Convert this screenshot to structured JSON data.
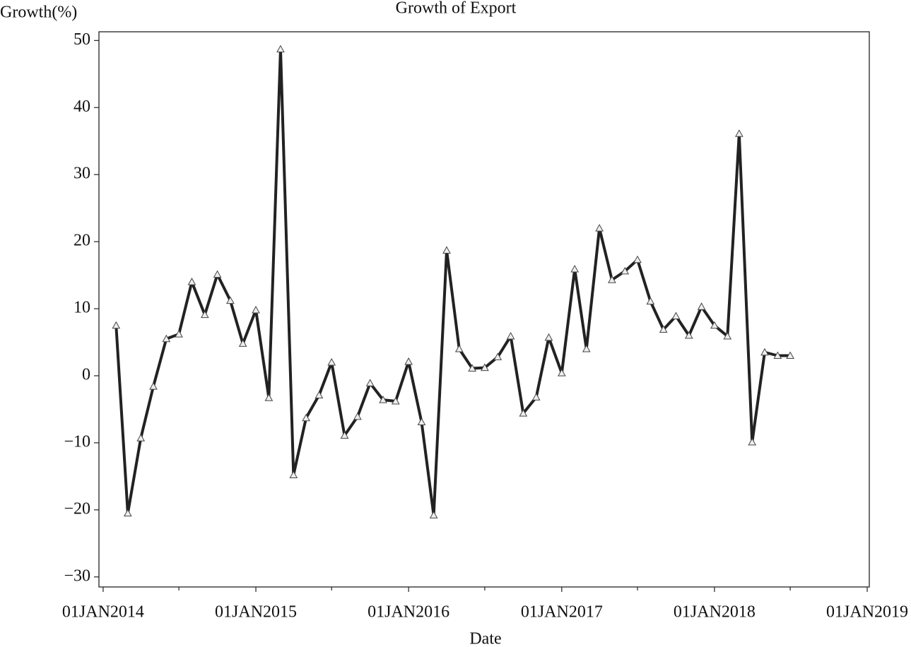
{
  "chart_data": {
    "type": "line",
    "title": "Growth of Export",
    "x_label": "Date",
    "y_label": "Growth(%)",
    "x": [
      "2014-02-01",
      "2014-03-01",
      "2014-04-01",
      "2014-05-01",
      "2014-06-01",
      "2014-07-01",
      "2014-08-01",
      "2014-09-01",
      "2014-10-01",
      "2014-11-01",
      "2014-12-01",
      "2015-01-01",
      "2015-02-01",
      "2015-03-01",
      "2015-04-01",
      "2015-05-01",
      "2015-06-01",
      "2015-07-01",
      "2015-08-01",
      "2015-09-01",
      "2015-10-01",
      "2015-11-01",
      "2015-12-01",
      "2016-01-01",
      "2016-02-01",
      "2016-03-01",
      "2016-04-01",
      "2016-05-01",
      "2016-06-01",
      "2016-07-01",
      "2016-08-01",
      "2016-09-01",
      "2016-10-01",
      "2016-11-01",
      "2016-12-01",
      "2017-01-01",
      "2017-02-01",
      "2017-03-01",
      "2017-04-01",
      "2017-05-01",
      "2017-06-01",
      "2017-07-01",
      "2017-08-01",
      "2017-09-01",
      "2017-10-01",
      "2017-11-01",
      "2017-12-01",
      "2018-01-01",
      "2018-02-01",
      "2018-03-01",
      "2018-04-01",
      "2018-05-01",
      "2018-06-01",
      "2018-07-01"
    ],
    "series": [
      {
        "color": "#222222",
        "values": [
          7.5,
          -20.5,
          -9.3,
          -1.6,
          5.5,
          6.2,
          14,
          9.1,
          15.1,
          11.2,
          4.8,
          9.8,
          -3.3,
          48.7,
          -14.8,
          -6.3,
          -2.9,
          2,
          -8.9,
          -6.1,
          -1.1,
          -3.6,
          -3.8,
          2.1,
          -6.9,
          -20.8,
          18.7,
          4,
          1.1,
          1.2,
          2.8,
          5.9,
          -5.6,
          -3.2,
          5.7,
          0.4,
          15.9,
          4,
          22,
          14.3,
          15.6,
          17.3,
          11.1,
          6.9,
          8.9,
          6,
          10.3,
          7.5,
          5.9,
          36.1,
          -9.9,
          3.5,
          3,
          3
        ]
      }
    ],
    "xlim": [
      "2013-12-22",
      "2019-01-06"
    ],
    "xticks": [
      {
        "value": "2014-01-01",
        "label": "01JAN2014"
      },
      {
        "value": "2015-01-01",
        "label": "01JAN2015"
      },
      {
        "value": "2016-01-01",
        "label": "01JAN2016"
      },
      {
        "value": "2017-01-01",
        "label": "01JAN2017"
      },
      {
        "value": "2018-01-01",
        "label": "01JAN2018"
      },
      {
        "value": "2019-01-01",
        "label": "01JAN2019"
      }
    ],
    "xminorticks": [
      "2014-07-01",
      "2015-07-01",
      "2016-07-01",
      "2017-07-01",
      "2018-07-01"
    ],
    "ylim": [
      -31.5,
      51.3
    ],
    "yticks": [
      {
        "value": -30,
        "label": "−30"
      },
      {
        "value": -20,
        "label": "−20"
      },
      {
        "value": -10,
        "label": "−10"
      },
      0,
      10,
      20,
      30,
      40,
      50
    ],
    "marker": "triangle"
  }
}
